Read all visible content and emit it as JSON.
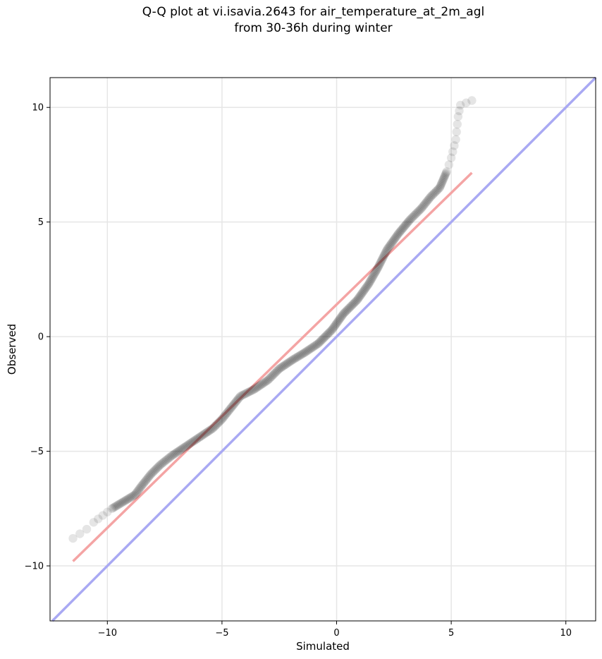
{
  "chart_data": {
    "type": "scatter",
    "title": "Q-Q plot at vi.isavia.2643 for air_temperature_at_2m_agl",
    "subtitle": "from 30-36h during winter",
    "xlabel": "Simulated",
    "ylabel": "Observed",
    "xlim": [
      -12.5,
      11.3
    ],
    "ylim": [
      -12.4,
      11.3
    ],
    "xticks": [
      -10,
      -5,
      0,
      5,
      10
    ],
    "yticks": [
      -10,
      -5,
      0,
      5,
      10
    ],
    "xtick_labels": [
      "−10",
      "−5",
      "0",
      "5",
      "10"
    ],
    "ytick_labels": [
      "−10",
      "−5",
      "0",
      "5",
      "10"
    ],
    "grid": true,
    "quantile_points": [
      [
        -11.5,
        -8.8
      ],
      [
        -11.2,
        -8.6
      ],
      [
        -10.9,
        -8.4
      ],
      [
        -10.6,
        -8.1
      ],
      [
        -10.2,
        -7.8
      ],
      [
        -9.8,
        -7.5
      ],
      [
        -9.3,
        -7.2
      ],
      [
        -8.8,
        -6.9
      ],
      [
        -8.5,
        -6.5
      ],
      [
        -8.1,
        -6.0
      ],
      [
        -7.7,
        -5.6
      ],
      [
        -7.2,
        -5.2
      ],
      [
        -6.6,
        -4.8
      ],
      [
        -6.0,
        -4.4
      ],
      [
        -5.4,
        -4.0
      ],
      [
        -5.0,
        -3.6
      ],
      [
        -4.6,
        -3.1
      ],
      [
        -4.2,
        -2.6
      ],
      [
        -3.6,
        -2.3
      ],
      [
        -3.0,
        -1.9
      ],
      [
        -2.5,
        -1.4
      ],
      [
        -1.9,
        -1.0
      ],
      [
        -1.4,
        -0.7
      ],
      [
        -0.8,
        -0.3
      ],
      [
        -0.2,
        0.3
      ],
      [
        0.3,
        1.0
      ],
      [
        0.9,
        1.6
      ],
      [
        1.4,
        2.3
      ],
      [
        1.8,
        3.0
      ],
      [
        2.2,
        3.8
      ],
      [
        2.7,
        4.5
      ],
      [
        3.2,
        5.1
      ],
      [
        3.7,
        5.6
      ],
      [
        4.1,
        6.1
      ],
      [
        4.5,
        6.5
      ],
      [
        4.8,
        7.2
      ],
      [
        5.0,
        7.8
      ],
      [
        5.2,
        8.6
      ],
      [
        5.3,
        9.6
      ],
      [
        5.4,
        10.1
      ],
      [
        5.9,
        10.3
      ]
    ],
    "fit_line": {
      "x": [
        -11.5,
        5.9
      ],
      "y": [
        -9.8,
        7.15
      ],
      "color": "#f4a4a4"
    },
    "identity_line": {
      "color": "#a9a9f3"
    },
    "point_color": "#000000"
  }
}
